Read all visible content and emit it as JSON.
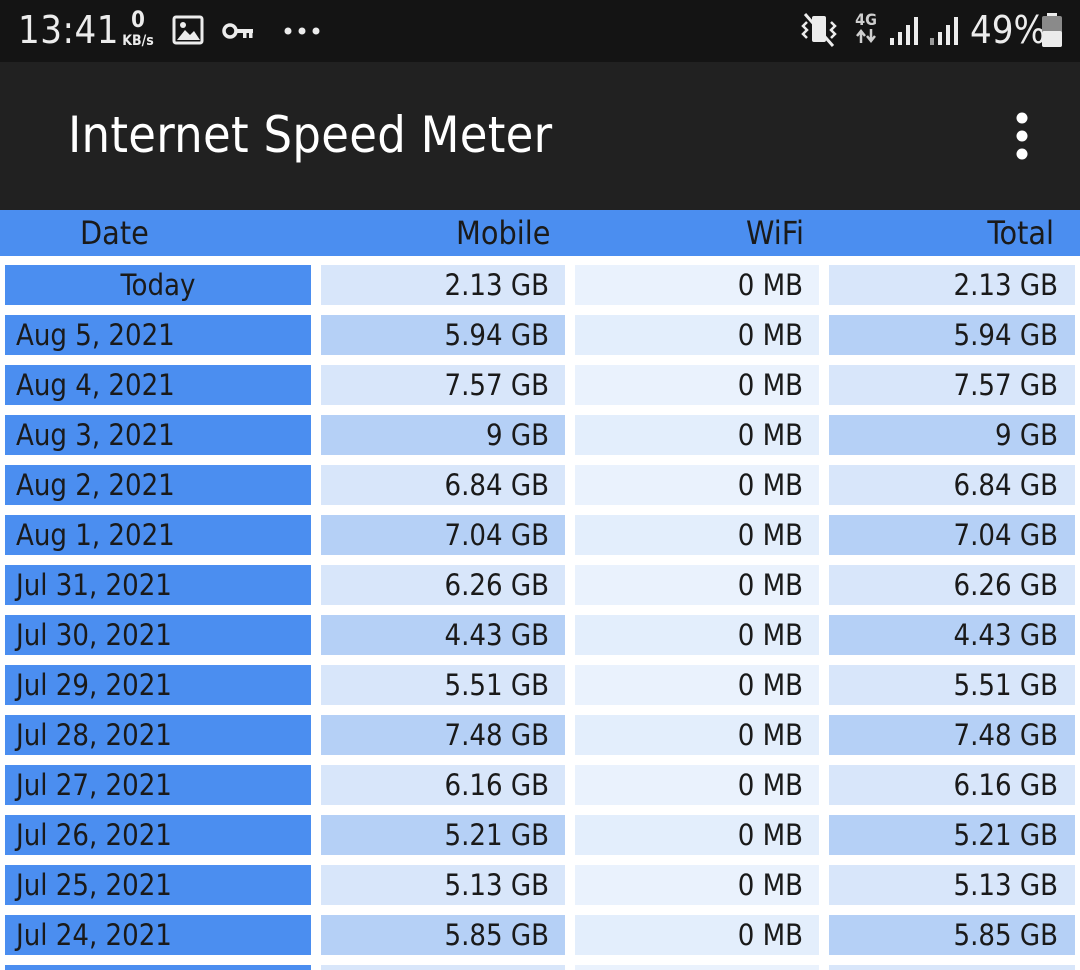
{
  "status_bar": {
    "time": "13:41",
    "net_speed_value": "0",
    "net_speed_unit": "KB/s",
    "network_type": "4G",
    "battery_percent": "49%",
    "icons": [
      "gallery-icon",
      "vpn-key-icon",
      "more-notifications-icon",
      "vibrate-icon",
      "mobile-data-icon",
      "signal-icon",
      "battery-icon"
    ]
  },
  "app_bar": {
    "title": "Internet Speed Meter",
    "menu_icon": "overflow-menu-icon"
  },
  "table": {
    "headers": {
      "date": "Date",
      "mobile": "Mobile",
      "wifi": "WiFi",
      "total": "Total"
    },
    "rows": [
      {
        "date": "Today",
        "mobile": "2.13 GB",
        "wifi": "0 MB",
        "total": "2.13 GB"
      },
      {
        "date": "Aug 5, 2021",
        "mobile": "5.94 GB",
        "wifi": "0 MB",
        "total": "5.94 GB"
      },
      {
        "date": "Aug 4, 2021",
        "mobile": "7.57 GB",
        "wifi": "0 MB",
        "total": "7.57 GB"
      },
      {
        "date": "Aug 3, 2021",
        "mobile": "9 GB",
        "wifi": "0 MB",
        "total": "9 GB"
      },
      {
        "date": "Aug 2, 2021",
        "mobile": "6.84 GB",
        "wifi": "0 MB",
        "total": "6.84 GB"
      },
      {
        "date": "Aug 1, 2021",
        "mobile": "7.04 GB",
        "wifi": "0 MB",
        "total": "7.04 GB"
      },
      {
        "date": "Jul 31, 2021",
        "mobile": "6.26 GB",
        "wifi": "0 MB",
        "total": "6.26 GB"
      },
      {
        "date": "Jul 30, 2021",
        "mobile": "4.43 GB",
        "wifi": "0 MB",
        "total": "4.43 GB"
      },
      {
        "date": "Jul 29, 2021",
        "mobile": "5.51 GB",
        "wifi": "0 MB",
        "total": "5.51 GB"
      },
      {
        "date": "Jul 28, 2021",
        "mobile": "7.48 GB",
        "wifi": "0 MB",
        "total": "7.48 GB"
      },
      {
        "date": "Jul 27, 2021",
        "mobile": "6.16 GB",
        "wifi": "0 MB",
        "total": "6.16 GB"
      },
      {
        "date": "Jul 26, 2021",
        "mobile": "5.21 GB",
        "wifi": "0 MB",
        "total": "5.21 GB"
      },
      {
        "date": "Jul 25, 2021",
        "mobile": "5.13 GB",
        "wifi": "0 MB",
        "total": "5.13 GB"
      },
      {
        "date": "Jul 24, 2021",
        "mobile": "5.85 GB",
        "wifi": "0 MB",
        "total": "5.85 GB"
      }
    ]
  },
  "colors": {
    "status_bar_bg": "#141414",
    "app_bar_bg": "#212121",
    "header_bg": "#4b8ef0",
    "date_cell_bg": "#4b8ef0",
    "value_cell_light": "#d8e6fa",
    "value_cell_dark": "#b5d0f6",
    "wifi_cell_bg": "#e7f0fc"
  }
}
